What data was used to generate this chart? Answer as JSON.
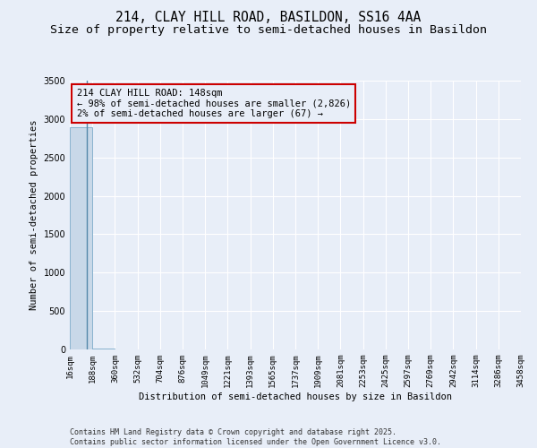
{
  "title_line1": "214, CLAY HILL ROAD, BASILDON, SS16 4AA",
  "title_line2": "Size of property relative to semi-detached houses in Basildon",
  "xlabel": "Distribution of semi-detached houses by size in Basildon",
  "ylabel": "Number of semi-detached properties",
  "annotation_title": "214 CLAY HILL ROAD: 148sqm",
  "annotation_line2": "← 98% of semi-detached houses are smaller (2,826)",
  "annotation_line3": "2% of semi-detached houses are larger (67) →",
  "footer_line1": "Contains HM Land Registry data © Crown copyright and database right 2025.",
  "footer_line2": "Contains public sector information licensed under the Open Government Licence v3.0.",
  "property_size": 148,
  "bin_edges": [
    16,
    188,
    360,
    532,
    704,
    876,
    1049,
    1221,
    1393,
    1565,
    1737,
    1909,
    2081,
    2253,
    2425,
    2597,
    2769,
    2942,
    3114,
    3286,
    3458
  ],
  "bin_labels": [
    "16sqm",
    "188sqm",
    "360sqm",
    "532sqm",
    "704sqm",
    "876sqm",
    "1049sqm",
    "1221sqm",
    "1393sqm",
    "1565sqm",
    "1737sqm",
    "1909sqm",
    "2081sqm",
    "2253sqm",
    "2425sqm",
    "2597sqm",
    "2769sqm",
    "2942sqm",
    "3114sqm",
    "3286sqm",
    "3458sqm"
  ],
  "bar_values": [
    2893,
    7,
    2,
    1,
    0,
    0,
    0,
    0,
    0,
    0,
    0,
    0,
    0,
    0,
    0,
    0,
    0,
    0,
    0,
    0
  ],
  "bar_color_normal": "#c8d8e8",
  "bar_edge_color": "#7aaac8",
  "vline_color": "#5588aa",
  "annotation_box_edge_color": "#cc0000",
  "ylim": [
    0,
    3500
  ],
  "bg_color": "#e8eef8",
  "grid_color": "#ffffff",
  "title_fontsize": 10.5,
  "subtitle_fontsize": 9.5,
  "axis_label_fontsize": 7.5,
  "tick_fontsize": 6.5,
  "annotation_fontsize": 7.5,
  "footer_fontsize": 6.0
}
